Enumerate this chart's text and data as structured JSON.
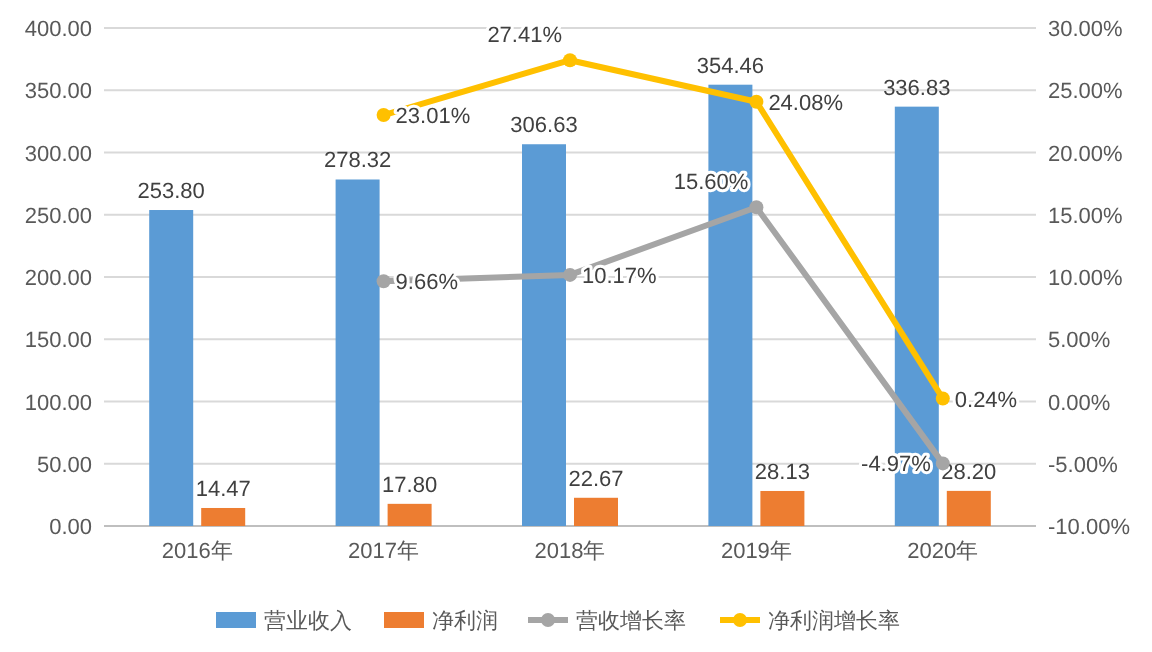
{
  "chart_data": {
    "type": "bar",
    "categories": [
      "2016年",
      "2017年",
      "2018年",
      "2019年",
      "2020年"
    ],
    "series": [
      {
        "name": "营业收入",
        "color": "#5b9bd5",
        "values": [
          253.8,
          278.32,
          306.63,
          354.46,
          336.83
        ],
        "value_labels": [
          "253.80",
          "278.32",
          "306.63",
          "354.46",
          "336.83"
        ]
      },
      {
        "name": "净利润",
        "color": "#ed7d31",
        "values": [
          14.47,
          17.8,
          22.67,
          28.13,
          28.2
        ],
        "value_labels": [
          "14.47",
          "17.80",
          "22.67",
          "28.13",
          "28.20"
        ]
      },
      {
        "name": "营收增长率",
        "type": "line",
        "axis": "y2",
        "color": "#a5a5a5",
        "values": [
          null,
          9.66,
          10.17,
          15.6,
          -4.97
        ],
        "value_labels": [
          null,
          "9.66%",
          "10.17%",
          "15.60%",
          "-4.97%"
        ]
      },
      {
        "name": "净利润增长率",
        "type": "line",
        "axis": "y2",
        "color": "#ffc000",
        "values": [
          null,
          23.01,
          27.41,
          24.08,
          0.24
        ],
        "value_labels": [
          null,
          "23.01%",
          "27.41%",
          "24.08%",
          "0.24%"
        ]
      }
    ],
    "ylim": [
      0,
      400
    ],
    "yticks": [
      {
        "value": 0,
        "label": "0.00"
      },
      {
        "value": 50,
        "label": "50.00"
      },
      {
        "value": 100,
        "label": "100.00"
      },
      {
        "value": 150,
        "label": "150.00"
      },
      {
        "value": 200,
        "label": "200.00"
      },
      {
        "value": 250,
        "label": "250.00"
      },
      {
        "value": 300,
        "label": "300.00"
      },
      {
        "value": 350,
        "label": "350.00"
      },
      {
        "value": 400,
        "label": "400.00"
      }
    ],
    "y2lim": [
      -10,
      30
    ],
    "y2ticks": [
      {
        "value": -10,
        "label": "-10.00%"
      },
      {
        "value": -5,
        "label": "-5.00%"
      },
      {
        "value": 0,
        "label": "0.00%"
      },
      {
        "value": 5,
        "label": "5.00%"
      },
      {
        "value": 10,
        "label": "10.00%"
      },
      {
        "value": 15,
        "label": "15.00%"
      },
      {
        "value": 20,
        "label": "20.00%"
      },
      {
        "value": 25,
        "label": "25.00%"
      },
      {
        "value": 30,
        "label": "30.00%"
      }
    ],
    "grid": "y",
    "legend": "bottom",
    "marker": "circle"
  }
}
